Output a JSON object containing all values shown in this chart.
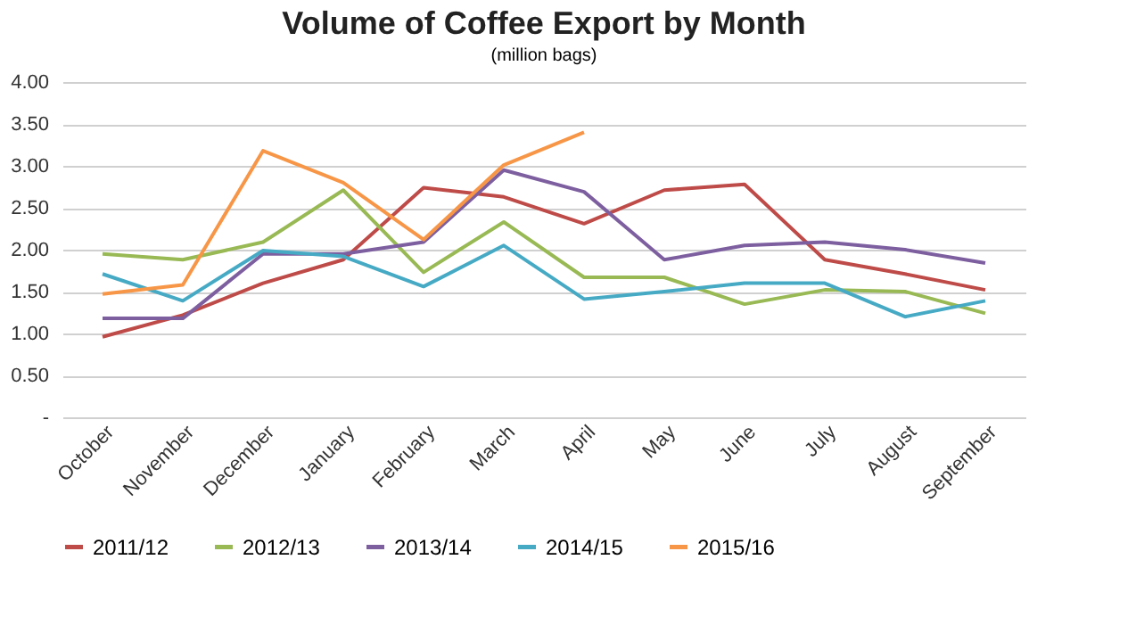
{
  "chart_data": {
    "type": "line",
    "title": "Volume of Coffee Export by Month",
    "subtitle": "(million bags)",
    "categories": [
      "October",
      "November",
      "December",
      "January",
      "February",
      "March",
      "April",
      "May",
      "June",
      "July",
      "August",
      "September"
    ],
    "series": [
      {
        "name": "2011/12",
        "color": "#be4b48",
        "values": [
          0.96,
          1.22,
          1.6,
          1.88,
          2.74,
          2.63,
          2.31,
          2.71,
          2.78,
          1.88,
          1.71,
          1.52
        ]
      },
      {
        "name": "2012/13",
        "color": "#98b954",
        "values": [
          1.95,
          1.88,
          2.09,
          2.71,
          1.73,
          2.33,
          1.67,
          1.67,
          1.35,
          1.52,
          1.5,
          1.24
        ]
      },
      {
        "name": "2013/14",
        "color": "#7d5fa0",
        "values": [
          1.18,
          1.18,
          1.95,
          1.95,
          2.09,
          2.95,
          2.69,
          1.88,
          2.05,
          2.09,
          2.0,
          1.84
        ]
      },
      {
        "name": "2014/15",
        "color": "#46aac5",
        "values": [
          1.71,
          1.39,
          1.99,
          1.92,
          1.56,
          2.05,
          1.41,
          1.5,
          1.6,
          1.6,
          1.2,
          1.39
        ]
      },
      {
        "name": "2015/16",
        "color": "#f79646",
        "values": [
          1.47,
          1.58,
          3.18,
          2.8,
          2.12,
          3.01,
          3.4,
          null,
          null,
          null,
          null,
          null
        ]
      }
    ],
    "ylim": [
      0,
      4
    ],
    "yticks": [
      {
        "value": 0,
        "label": "-"
      },
      {
        "value": 0.5,
        "label": "0.50"
      },
      {
        "value": 1,
        "label": "1.00"
      },
      {
        "value": 1.5,
        "label": "1.50"
      },
      {
        "value": 2,
        "label": "2.00"
      },
      {
        "value": 2.5,
        "label": "2.50"
      },
      {
        "value": 3,
        "label": "3.00"
      },
      {
        "value": 3.5,
        "label": "3.50"
      },
      {
        "value": 4,
        "label": "4.00"
      }
    ],
    "grid": "y",
    "legend": "bottom",
    "marker": "none",
    "line_style": "solid"
  }
}
